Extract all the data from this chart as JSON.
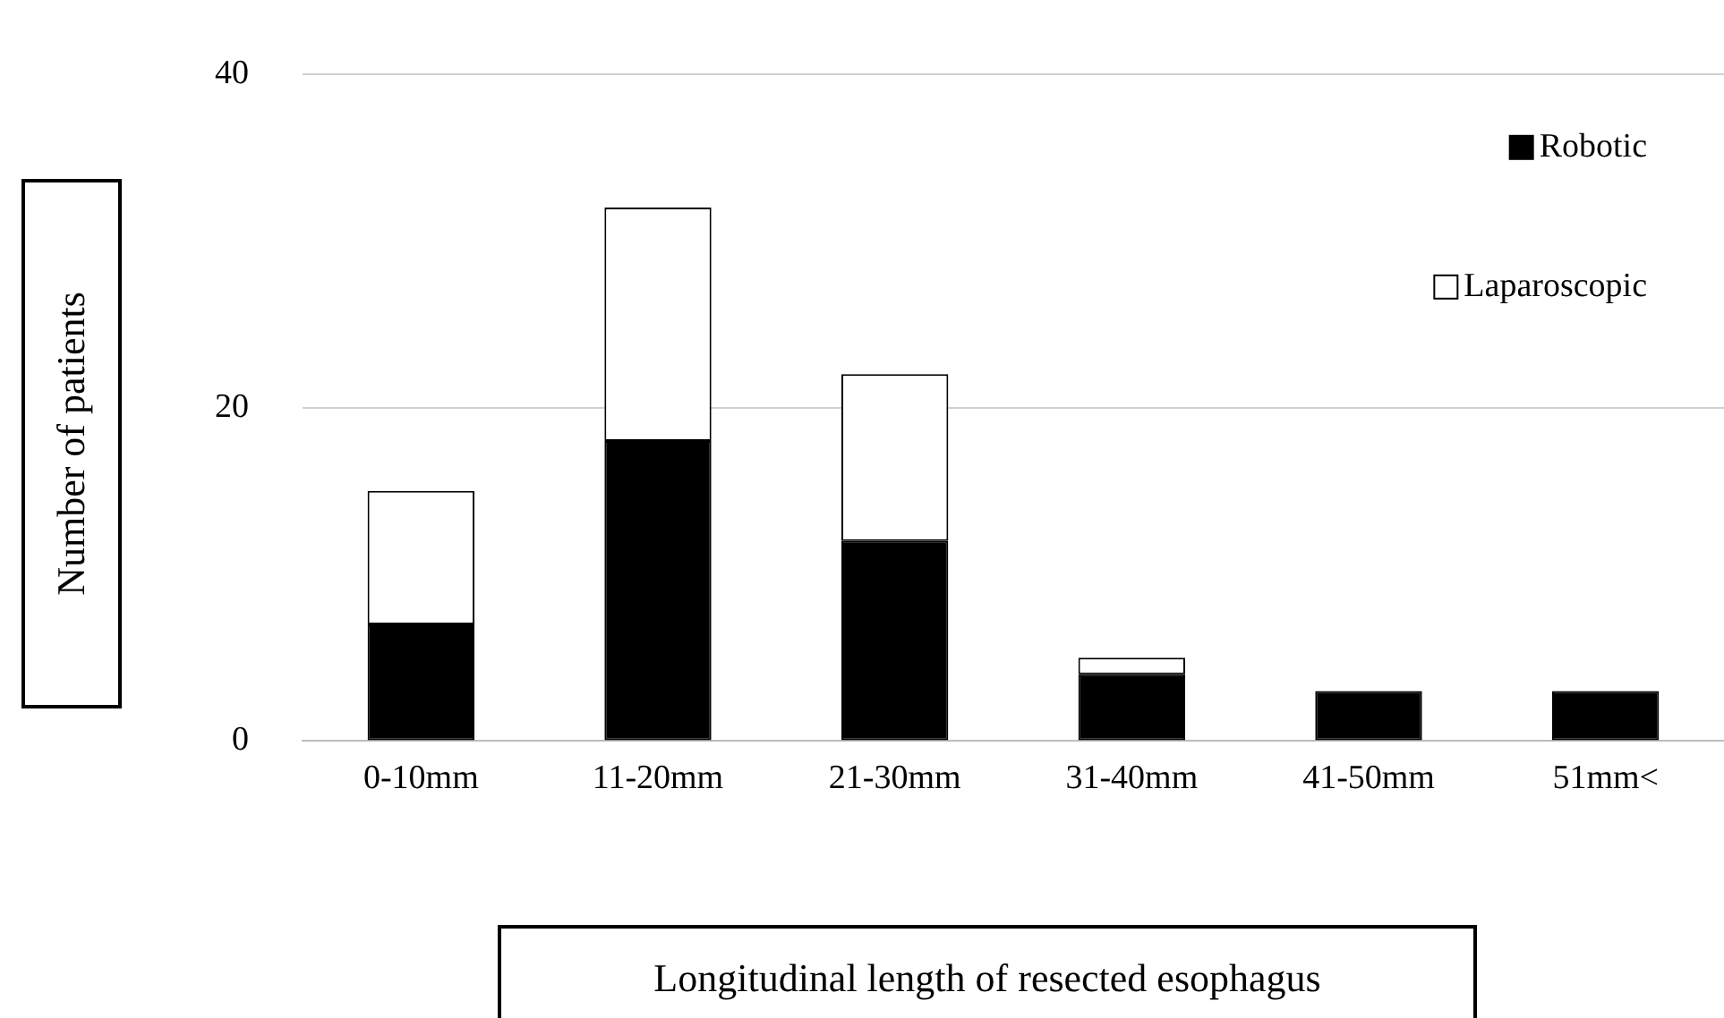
{
  "chart_data": {
    "type": "bar",
    "stacked": true,
    "xlabel": "Longitudinal length of resected esophagus",
    "ylabel": "Number of patients",
    "categories": [
      "0-10mm",
      "11-20mm",
      "21-30mm",
      "31-40mm",
      "41-50mm",
      "51mm<"
    ],
    "series": [
      {
        "name": "Robotic",
        "color": "#000000",
        "values": [
          7,
          18,
          12,
          4,
          3,
          3
        ]
      },
      {
        "name": "Laparoscopic",
        "color": "#ffffff",
        "values": [
          8,
          14,
          10,
          1,
          0,
          0
        ]
      }
    ],
    "ylim": [
      0,
      40
    ],
    "yticks": [
      0,
      20,
      40
    ],
    "grid": "y",
    "legend": "top right"
  }
}
